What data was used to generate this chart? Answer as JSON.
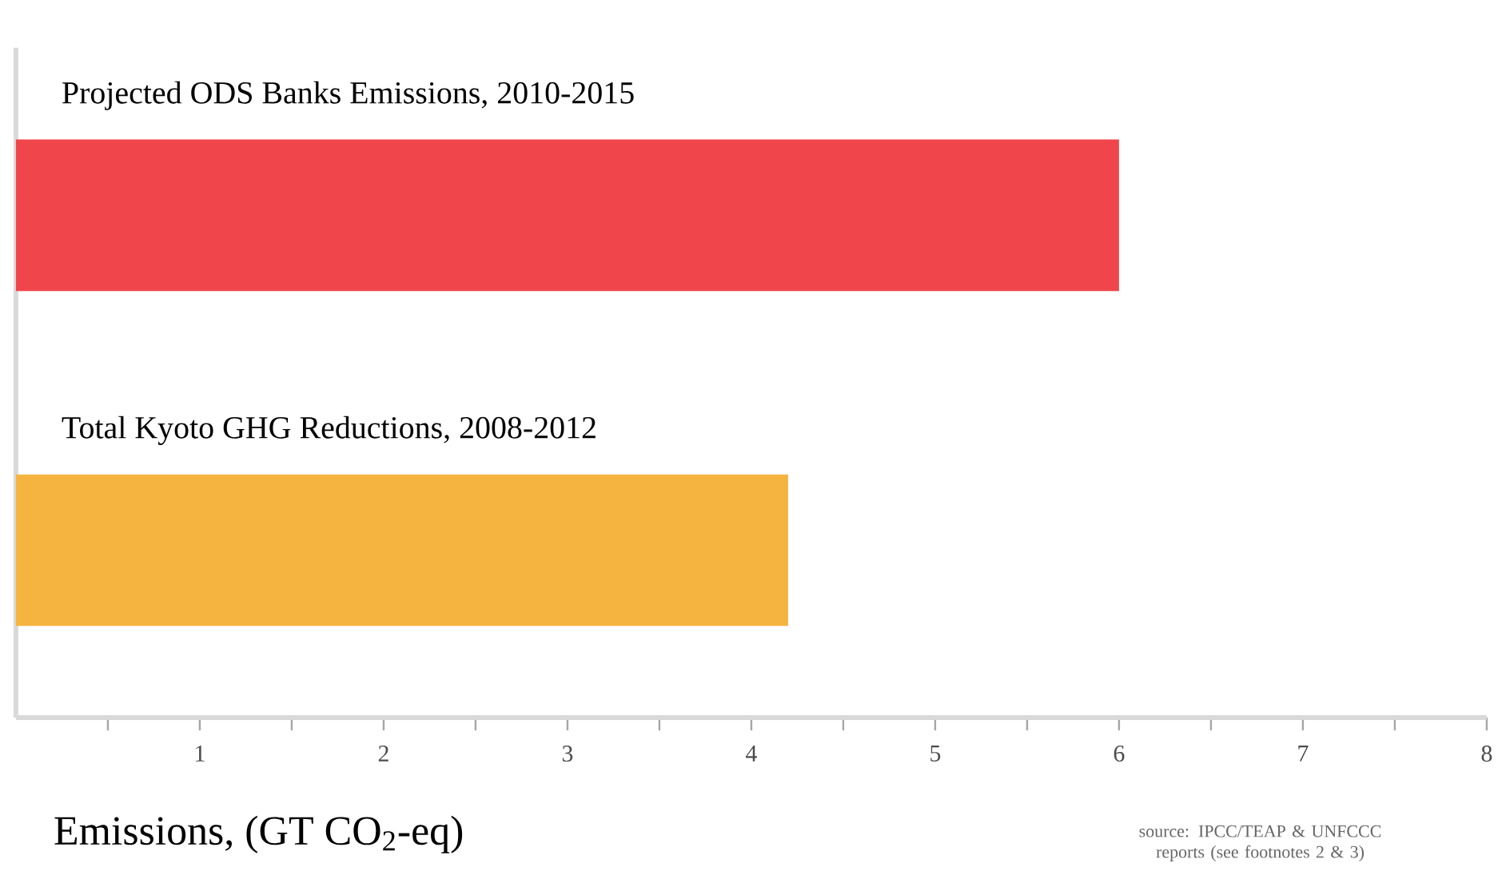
{
  "chart_data": {
    "type": "bar",
    "orientation": "horizontal",
    "categories": [
      "Projected ODS Banks Emissions, 2010-2015",
      "Total Kyoto GHG Reductions, 2008-2012"
    ],
    "values": [
      6.0,
      4.2
    ],
    "colors": [
      "#f0464b",
      "#f5b440"
    ],
    "xlabel": "Emissions, (GT CO$_{2}$-eq)",
    "xlim": [
      0,
      8
    ],
    "xticks": [
      {
        "value": 0.5,
        "label": null
      },
      1,
      {
        "value": 1.5,
        "label": null
      },
      2,
      {
        "value": 2.5,
        "label": null
      },
      3,
      {
        "value": 3.5,
        "label": null
      },
      4,
      {
        "value": 4.5,
        "label": null
      },
      5,
      {
        "value": 5.5,
        "label": null
      },
      6,
      {
        "value": 6.5,
        "label": null
      },
      7,
      {
        "value": 7.5,
        "label": null
      },
      8
    ],
    "annotations": [
      "source: IPCC/TEAP & UNFCCC reports (see footnotes 2 & 3)"
    ]
  }
}
